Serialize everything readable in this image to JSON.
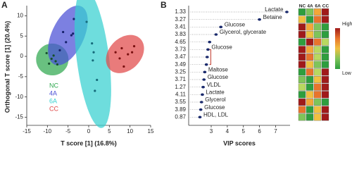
{
  "chart_data": [
    {
      "type": "scatter",
      "panel": "A",
      "xlabel": "T score [1] (16.8%)",
      "ylabel": "Orthogonal T score [1] (20.4%)",
      "xlim": [
        -15,
        15
      ],
      "ylim": [
        -17,
        12.5
      ],
      "xticks": [
        -15,
        -10,
        -5,
        0,
        5,
        10,
        15
      ],
      "yticks": [
        -15,
        -10,
        -5,
        0,
        5,
        10
      ],
      "series": [
        {
          "name": "NC",
          "color": "#2fa84f",
          "point_color": "#14502a",
          "x": [
            -10.2,
            -9.6,
            -9.0,
            -8.5,
            -8.0,
            -7.6
          ],
          "values": [
            0.8,
            -1.8,
            -0.6,
            0.2,
            -1.2,
            -2.0
          ]
        },
        {
          "name": "4A",
          "color": "#4a4fd6",
          "point_color": "#15206a",
          "x": [
            -7.0,
            -6.2,
            -5.5,
            -4.2,
            -3.6,
            -3.8
          ],
          "values": [
            1.5,
            6.0,
            3.5,
            5.2,
            9.2,
            5.6
          ]
        },
        {
          "name": "6A",
          "color": "#36d0d0",
          "point_color": "#156a7a",
          "x": [
            -0.5,
            0.8,
            1.0,
            1.2,
            2.0,
            1.5
          ],
          "values": [
            8.5,
            3.2,
            -1.0,
            1.0,
            -5.8,
            -8.5
          ]
        },
        {
          "name": "CC",
          "color": "#e04848",
          "point_color": "#7a1010",
          "x": [
            6.5,
            7.5,
            8.0,
            8.5,
            9.5,
            10.5,
            11.0
          ],
          "values": [
            1.0,
            -0.5,
            2.0,
            -2.5,
            0.5,
            1.0,
            2.5
          ]
        }
      ]
    },
    {
      "type": "dot",
      "panel": "B",
      "xlabel": "VIP scores",
      "color": "#1a2a6c",
      "xlim": [
        1.6,
        7.9
      ],
      "xticks": [
        3,
        4,
        5,
        6,
        7
      ],
      "categories": [
        "1.33",
        "3.27",
        "3.41",
        "3.83",
        "4.65",
        "3.73",
        "3.47",
        "3.49",
        "3.25",
        "3.71",
        "1.27",
        "4.11",
        "3.55",
        "3.89",
        "0.87"
      ],
      "values": [
        7.7,
        6.0,
        3.6,
        3.3,
        2.9,
        2.8,
        2.75,
        2.7,
        2.6,
        2.55,
        2.5,
        2.45,
        2.4,
        2.35,
        2.3
      ],
      "point_labels": [
        "Lactate",
        "Betaine",
        "Glucose",
        "Glycerol, glycerate",
        null,
        "Glucose",
        null,
        null,
        "Maltose",
        "Glucose",
        "VLDL",
        "Lactate",
        "Glycerol",
        "Glucose",
        "HDL, LDL"
      ],
      "heatmap": {
        "columns": [
          "NC",
          "4A",
          "6A",
          "CC"
        ],
        "colors": [
          [
            "#2e9e3e",
            "#7fc45a",
            "#f4a638",
            "#a01a1a"
          ],
          [
            "#f0c040",
            "#2e9e3e",
            "#e8742c",
            "#a01a1a"
          ],
          [
            "#a01a1a",
            "#f4a638",
            "#7fc45a",
            "#2e9e3e"
          ],
          [
            "#a01a1a",
            "#f0c040",
            "#7fc45a",
            "#2e9e3e"
          ],
          [
            "#2e9e3e",
            "#a01a1a",
            "#e8742c",
            "#b8d860"
          ],
          [
            "#a01a1a",
            "#f4a638",
            "#b8d860",
            "#2e9e3e"
          ],
          [
            "#a01a1a",
            "#e8742c",
            "#b8d860",
            "#2e9e3e"
          ],
          [
            "#a01a1a",
            "#f0c040",
            "#7fc45a",
            "#2e9e3e"
          ],
          [
            "#2e9e3e",
            "#e8742c",
            "#b8d860",
            "#a01a1a"
          ],
          [
            "#7fc45a",
            "#2e9e3e",
            "#f0c040",
            "#a01a1a"
          ],
          [
            "#b8d860",
            "#2e9e3e",
            "#e8742c",
            "#a01a1a"
          ],
          [
            "#2e9e3e",
            "#f0c040",
            "#e8742c",
            "#a01a1a"
          ],
          [
            "#a01a1a",
            "#f4a638",
            "#7fc45a",
            "#2e9e3e"
          ],
          [
            "#e8742c",
            "#2e9e3e",
            "#f0c040",
            "#a01a1a"
          ],
          [
            "#7fc45a",
            "#2e9e3e",
            "#f0c040",
            "#a01a1a"
          ]
        ]
      },
      "colorbar": {
        "high": "High",
        "low": "Low",
        "colors": [
          "#a01a1a",
          "#e8742c",
          "#f0c040",
          "#7fc45a",
          "#2e9e3e"
        ]
      }
    }
  ]
}
